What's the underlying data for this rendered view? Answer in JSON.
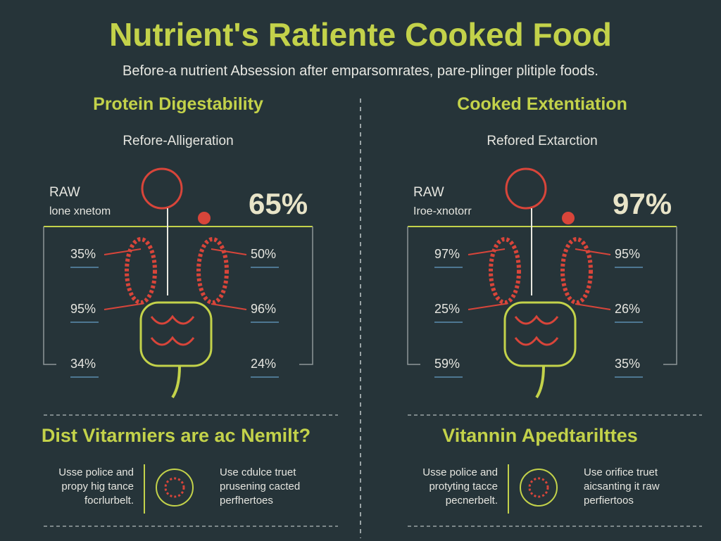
{
  "header": {
    "title": "Nutrient's Ratiente Cooked Food",
    "subtitle": "Before-a nutrient Absession after emparsomrates, pare-plinger plitiple foods."
  },
  "panels": [
    {
      "heading": "Protein Digestability",
      "subheading": "Refore-Alligeration",
      "raw_label": "RAW",
      "raw_sublabel": "lone xnetom",
      "big_value": "65%",
      "left_values": [
        "35%",
        "95%",
        "34%"
      ],
      "right_values": [
        "50%",
        "96%",
        "24%"
      ],
      "section_title": "Dist Vitarmiers are ac Nemilt?",
      "note_left": "Usse police and propy hig tance focrlurbelt.",
      "note_right": "Use cdulce truet prusening cacted perfhertoes"
    },
    {
      "heading": "Cooked Extentiation",
      "subheading": "Refored Extarction",
      "raw_label": "RAW",
      "raw_sublabel": "Iroe-xnotorr",
      "big_value": "97%",
      "left_values": [
        "97%",
        "25%",
        "59%"
      ],
      "right_values": [
        "95%",
        "26%",
        "35%"
      ],
      "section_title": "Vitannin Apedtarilttes",
      "note_left": "Usse police and protyting tacce pecnerbelt.",
      "note_right": "Use orifice truet aicsanting it raw perfiertoos"
    }
  ]
}
